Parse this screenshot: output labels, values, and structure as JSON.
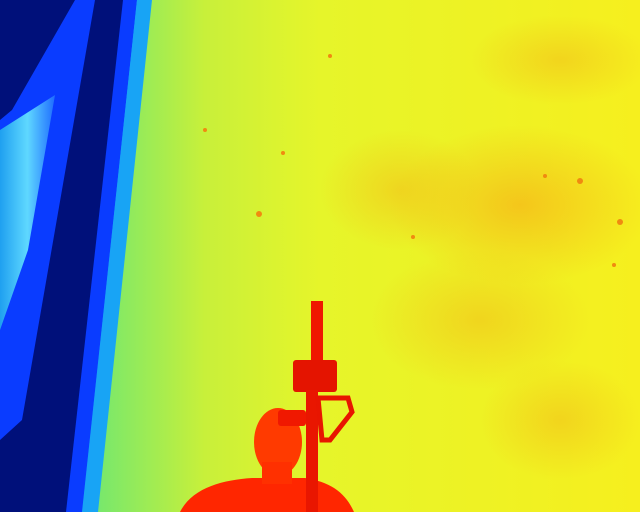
{
  "palette": {
    "coldest": "#00107a",
    "cold": "#0a3cff",
    "cool": "#19b4f5",
    "mild": "#2ad6d0",
    "warm_green": "#7be86a",
    "warm": "#e6f52a",
    "hot_yellow": "#f6ef1e",
    "hot": "#f5b818",
    "very_hot": "#ff2c00",
    "hottest": "#ff1600"
  },
  "scene": {
    "type": "thermal-infrared-image",
    "subjects": [
      "cold-window-frame",
      "warm-wall",
      "person-with-device"
    ]
  }
}
